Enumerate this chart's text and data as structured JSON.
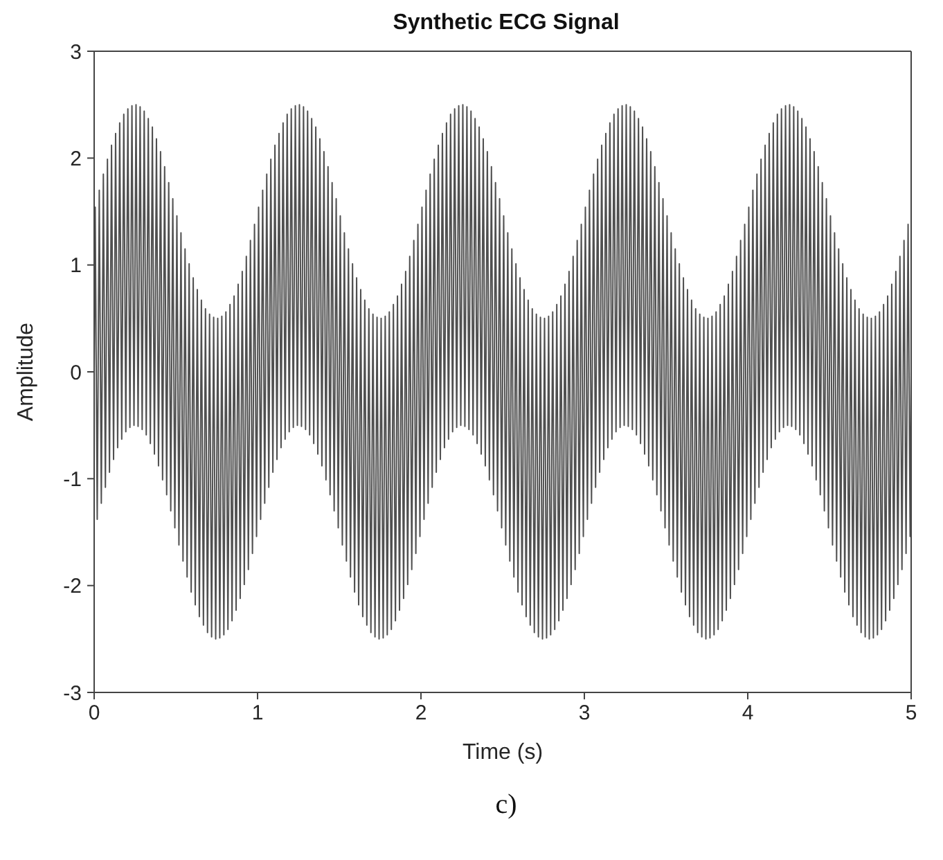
{
  "chart_data": {
    "type": "line",
    "title": "Synthetic ECG Signal",
    "xlabel": "Time (s)",
    "ylabel": "Amplitude",
    "annotations": [
      "c)"
    ],
    "xlim": [
      0,
      5
    ],
    "xticks": [
      0,
      1,
      2,
      3,
      4,
      5
    ],
    "ylim": [
      -3,
      3
    ],
    "yticks": [
      -3,
      -2,
      -1,
      0,
      1,
      2,
      3
    ],
    "grid": false,
    "marker": "none",
    "line_style": "solid",
    "x": [
      0,
      0.00625,
      0.01875,
      0.03125,
      0.04375,
      0.05625,
      0.06875,
      0.08125,
      0.09375,
      0.10625,
      0.11875,
      0.13125,
      0.14375,
      0.15625,
      0.16875,
      0.18125,
      0.19375,
      0.20625,
      0.21875,
      0.23125,
      0.24375,
      0.25625,
      0.26875,
      0.28125,
      0.29375,
      0.30625,
      0.31875,
      0.33125,
      0.34375,
      0.35625,
      0.36875,
      0.38125,
      0.39375,
      0.40625,
      0.41875,
      0.43125,
      0.44375,
      0.45625,
      0.46875,
      0.48125,
      0.49375,
      0.50625,
      0.51875,
      0.53125,
      0.54375,
      0.55625,
      0.56875,
      0.58125,
      0.59375,
      0.60625,
      0.61875,
      0.63125,
      0.64375,
      0.65625,
      0.66875,
      0.68125,
      0.69375,
      0.70625,
      0.71875,
      0.73125,
      0.74375,
      0.75625,
      0.76875,
      0.78125,
      0.79375,
      0.80625,
      0.81875,
      0.83125,
      0.84375,
      0.85625,
      0.86875,
      0.88125,
      0.89375,
      0.90625,
      0.91875,
      0.93125,
      0.94375,
      0.95625,
      0.96875,
      0.98125,
      0.99375,
      1.00625,
      1.01875,
      1.03125,
      1.04375,
      1.05625,
      1.06875,
      1.08125,
      1.09375,
      1.10625,
      1.11875,
      1.13125,
      1.14375,
      1.15625,
      1.16875,
      1.18125,
      1.19375,
      1.20625,
      1.21875,
      1.23125,
      1.24375,
      1.25625,
      1.26875,
      1.28125,
      1.29375,
      1.30625,
      1.31875,
      1.33125,
      1.34375,
      1.35625,
      1.36875,
      1.38125,
      1.39375,
      1.40625,
      1.41875,
      1.43125,
      1.44375,
      1.45625,
      1.46875,
      1.48125,
      1.49375,
      1.50625,
      1.51875,
      1.53125,
      1.54375,
      1.55625,
      1.56875,
      1.58125,
      1.59375,
      1.60625,
      1.61875,
      1.63125,
      1.64375,
      1.65625,
      1.66875,
      1.68125,
      1.69375,
      1.70625,
      1.71875,
      1.73125,
      1.74375,
      1.75625,
      1.76875,
      1.78125,
      1.79375,
      1.80625,
      1.81875,
      1.83125,
      1.84375,
      1.85625,
      1.86875,
      1.88125,
      1.89375,
      1.90625,
      1.91875,
      1.93125,
      1.94375,
      1.95625,
      1.96875,
      1.98125,
      1.99375,
      2.00625,
      2.01875,
      2.03125,
      2.04375,
      2.05625,
      2.06875,
      2.08125,
      2.09375,
      2.10625,
      2.11875,
      2.13125,
      2.14375,
      2.15625,
      2.16875,
      2.18125,
      2.19375,
      2.20625,
      2.21875,
      2.23125,
      2.24375,
      2.25625,
      2.26875,
      2.28125,
      2.29375,
      2.30625,
      2.31875,
      2.33125,
      2.34375,
      2.35625,
      2.36875,
      2.38125,
      2.39375,
      2.40625,
      2.41875,
      2.43125,
      2.44375,
      2.45625,
      2.46875,
      2.48125,
      2.49375,
      2.50625,
      2.51875,
      2.53125,
      2.54375,
      2.55625,
      2.56875,
      2.58125,
      2.59375,
      2.60625,
      2.61875,
      2.63125,
      2.64375,
      2.65625,
      2.66875,
      2.68125,
      2.69375,
      2.70625,
      2.71875,
      2.73125,
      2.74375,
      2.75625,
      2.76875,
      2.78125,
      2.79375,
      2.80625,
      2.81875,
      2.83125,
      2.84375,
      2.85625,
      2.86875,
      2.88125,
      2.89375,
      2.90625,
      2.91875,
      2.93125,
      2.94375,
      2.95625,
      2.96875,
      2.98125,
      2.99375,
      3.00625,
      3.01875,
      3.03125,
      3.04375,
      3.05625,
      3.06875,
      3.08125,
      3.09375,
      3.10625,
      3.11875,
      3.13125,
      3.14375,
      3.15625,
      3.16875,
      3.18125,
      3.19375,
      3.20625,
      3.21875,
      3.23125,
      3.24375,
      3.25625,
      3.26875,
      3.28125,
      3.29375,
      3.30625,
      3.31875,
      3.33125,
      3.34375,
      3.35625,
      3.36875,
      3.38125,
      3.39375,
      3.40625,
      3.41875,
      3.43125,
      3.44375,
      3.45625,
      3.46875,
      3.48125,
      3.49375,
      3.50625,
      3.51875,
      3.53125,
      3.54375,
      3.55625,
      3.56875,
      3.58125,
      3.59375,
      3.60625,
      3.61875,
      3.63125,
      3.64375,
      3.65625,
      3.66875,
      3.68125,
      3.69375,
      3.70625,
      3.71875,
      3.73125,
      3.74375,
      3.75625,
      3.76875,
      3.78125,
      3.79375,
      3.80625,
      3.81875,
      3.83125,
      3.84375,
      3.85625,
      3.86875,
      3.88125,
      3.89375,
      3.90625,
      3.91875,
      3.93125,
      3.94375,
      3.95625,
      3.96875,
      3.98125,
      3.99375,
      4.00625,
      4.01875,
      4.03125,
      4.04375,
      4.05625,
      4.06875,
      4.08125,
      4.09375,
      4.10625,
      4.11875,
      4.13125,
      4.14375,
      4.15625,
      4.16875,
      4.18125,
      4.19375,
      4.20625,
      4.21875,
      4.23125,
      4.24375,
      4.25625,
      4.26875,
      4.28125,
      4.29375,
      4.30625,
      4.31875,
      4.33125,
      4.34375,
      4.35625,
      4.36875,
      4.38125,
      4.39375,
      4.40625,
      4.41875,
      4.43125,
      4.44375,
      4.45625,
      4.46875,
      4.48125,
      4.49375,
      4.50625,
      4.51875,
      4.53125,
      4.54375,
      4.55625,
      4.56875,
      4.58125,
      4.59375,
      4.60625,
      4.61875,
      4.63125,
      4.64375,
      4.65625,
      4.66875,
      4.68125,
      4.69375,
      4.70625,
      4.71875,
      4.73125,
      4.74375,
      4.75625,
      4.76875,
      4.78125,
      4.79375,
      4.80625,
      4.81875,
      4.83125,
      4.84375,
      4.85625,
      4.86875,
      4.88125,
      4.89375,
      4.90625,
      4.91875,
      4.93125,
      4.94375,
      4.95625,
      4.96875,
      4.98125,
      4.99375,
      5
    ],
    "series": [
      {
        "color": "#505050",
        "values": [
          0,
          1.54,
          -1.38,
          1.7,
          -1.23,
          1.85,
          -1.08,
          1.99,
          -0.94,
          2.12,
          -0.82,
          2.23,
          -0.71,
          2.33,
          -0.63,
          2.41,
          -0.56,
          2.46,
          -0.52,
          2.49,
          -0.5,
          2.5,
          -0.51,
          2.48,
          -0.54,
          2.44,
          -0.59,
          2.37,
          -0.67,
          2.29,
          -0.77,
          2.18,
          -0.88,
          2.06,
          -1.01,
          1.92,
          -1.15,
          1.77,
          -1.3,
          1.62,
          -1.46,
          1.46,
          -1.62,
          1.3,
          -1.77,
          1.15,
          -1.92,
          1.01,
          -2.06,
          0.88,
          -2.18,
          0.77,
          -2.29,
          0.67,
          -2.37,
          0.59,
          -2.44,
          0.54,
          -2.48,
          0.51,
          -2.5,
          0.5,
          -2.49,
          0.52,
          -2.46,
          0.56,
          -2.41,
          0.63,
          -2.33,
          0.71,
          -2.23,
          0.82,
          -2.12,
          0.94,
          -1.99,
          1.08,
          -1.85,
          1.23,
          -1.7,
          1.38,
          -1.54,
          1.54,
          -1.38,
          1.7,
          -1.23,
          1.85,
          -1.08,
          1.99,
          -0.94,
          2.12,
          -0.82,
          2.23,
          -0.71,
          2.33,
          -0.63,
          2.41,
          -0.56,
          2.46,
          -0.52,
          2.49,
          -0.5,
          2.5,
          -0.51,
          2.48,
          -0.54,
          2.44,
          -0.59,
          2.37,
          -0.67,
          2.29,
          -0.77,
          2.18,
          -0.88,
          2.06,
          -1.01,
          1.92,
          -1.15,
          1.77,
          -1.3,
          1.62,
          -1.46,
          1.46,
          -1.62,
          1.3,
          -1.77,
          1.15,
          -1.92,
          1.01,
          -2.06,
          0.88,
          -2.18,
          0.77,
          -2.29,
          0.67,
          -2.37,
          0.59,
          -2.44,
          0.54,
          -2.48,
          0.51,
          -2.5,
          0.5,
          -2.49,
          0.52,
          -2.46,
          0.56,
          -2.41,
          0.63,
          -2.33,
          0.71,
          -2.23,
          0.82,
          -2.12,
          0.94,
          -1.99,
          1.08,
          -1.85,
          1.23,
          -1.7,
          1.38,
          -1.54,
          1.54,
          -1.38,
          1.7,
          -1.23,
          1.85,
          -1.08,
          1.99,
          -0.94,
          2.12,
          -0.82,
          2.23,
          -0.71,
          2.33,
          -0.63,
          2.41,
          -0.56,
          2.46,
          -0.52,
          2.49,
          -0.5,
          2.5,
          -0.51,
          2.48,
          -0.54,
          2.44,
          -0.59,
          2.37,
          -0.67,
          2.29,
          -0.77,
          2.18,
          -0.88,
          2.06,
          -1.01,
          1.92,
          -1.15,
          1.77,
          -1.3,
          1.62,
          -1.46,
          1.46,
          -1.62,
          1.3,
          -1.77,
          1.15,
          -1.92,
          1.01,
          -2.06,
          0.88,
          -2.18,
          0.77,
          -2.29,
          0.67,
          -2.37,
          0.59,
          -2.44,
          0.54,
          -2.48,
          0.51,
          -2.5,
          0.5,
          -2.49,
          0.52,
          -2.46,
          0.56,
          -2.41,
          0.63,
          -2.33,
          0.71,
          -2.23,
          0.82,
          -2.12,
          0.94,
          -1.99,
          1.08,
          -1.85,
          1.23,
          -1.7,
          1.38,
          -1.54,
          1.54,
          -1.38,
          1.7,
          -1.23,
          1.85,
          -1.08,
          1.99,
          -0.94,
          2.12,
          -0.82,
          2.23,
          -0.71,
          2.33,
          -0.63,
          2.41,
          -0.56,
          2.46,
          -0.52,
          2.49,
          -0.5,
          2.5,
          -0.51,
          2.48,
          -0.54,
          2.44,
          -0.59,
          2.37,
          -0.67,
          2.29,
          -0.77,
          2.18,
          -0.88,
          2.06,
          -1.01,
          1.92,
          -1.15,
          1.77,
          -1.3,
          1.62,
          -1.46,
          1.46,
          -1.62,
          1.3,
          -1.77,
          1.15,
          -1.92,
          1.01,
          -2.06,
          0.88,
          -2.18,
          0.77,
          -2.29,
          0.67,
          -2.37,
          0.59,
          -2.44,
          0.54,
          -2.48,
          0.51,
          -2.5,
          0.5,
          -2.49,
          0.52,
          -2.46,
          0.56,
          -2.41,
          0.63,
          -2.33,
          0.71,
          -2.23,
          0.82,
          -2.12,
          0.94,
          -1.99,
          1.08,
          -1.85,
          1.23,
          -1.7,
          1.38,
          -1.54,
          1.54,
          -1.38,
          1.7,
          -1.23,
          1.85,
          -1.08,
          1.99,
          -0.94,
          2.12,
          -0.82,
          2.23,
          -0.71,
          2.33,
          -0.63,
          2.41,
          -0.56,
          2.46,
          -0.52,
          2.49,
          -0.5,
          2.5,
          -0.51,
          2.48,
          -0.54,
          2.44,
          -0.59,
          2.37,
          -0.67,
          2.29,
          -0.77,
          2.18,
          -0.88,
          2.06,
          -1.01,
          1.92,
          -1.15,
          1.77,
          -1.3,
          1.62,
          -1.46,
          1.46,
          -1.62,
          1.3,
          -1.77,
          1.15,
          -1.92,
          1.01,
          -2.06,
          0.88,
          -2.18,
          0.77,
          -2.29,
          0.67,
          -2.37,
          0.59,
          -2.44,
          0.54,
          -2.48,
          0.51,
          -2.5,
          0.5,
          -2.49,
          0.52,
          -2.46,
          0.56,
          -2.41,
          0.63,
          -2.33,
          0.71,
          -2.23,
          0.82,
          -2.12,
          0.94,
          -1.99,
          1.08,
          -1.85,
          1.23,
          -1.7,
          1.38,
          -1.54,
          0
        ]
      }
    ]
  }
}
